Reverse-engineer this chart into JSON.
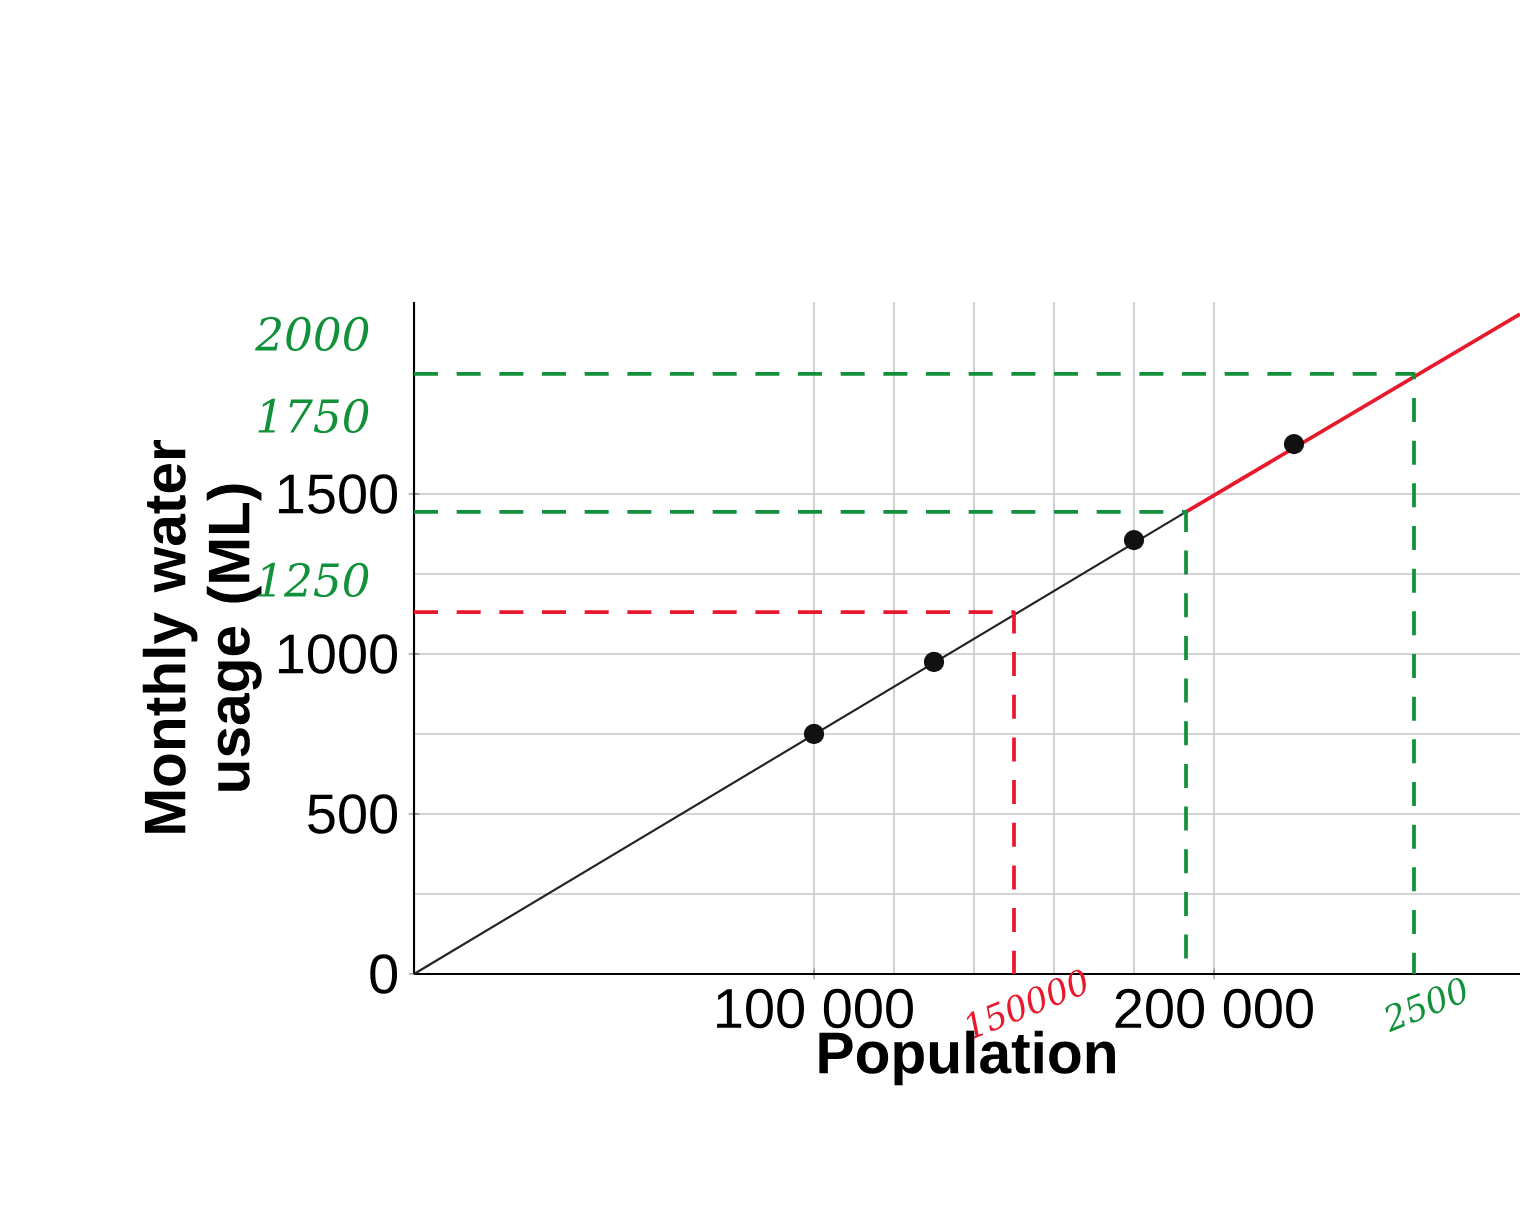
{
  "chart_data": {
    "type": "line",
    "xlabel": "Population",
    "ylabel": "Monthly water usage (ML)",
    "xlim": [
      0,
      276500
    ],
    "ylim": [
      0,
      2100
    ],
    "xticks": [
      {
        "value": 100000,
        "label": "100 000"
      },
      {
        "value": 200000,
        "label": "200 000"
      }
    ],
    "yticks": [
      0,
      500,
      1000,
      1500
    ],
    "grid": true,
    "series": [
      {
        "type": "scatter",
        "color": "#111111",
        "marker": "circle",
        "x": [
          100000,
          130000,
          180000,
          220000
        ],
        "values": [
          750,
          975,
          1356,
          1656
        ]
      },
      {
        "color": "#222222",
        "line_style": "solid",
        "x": [
          0,
          193000
        ],
        "values": [
          0,
          1444
        ]
      },
      {
        "color": "#e8192c",
        "line_style": "solid",
        "x": [
          193000,
          276500
        ],
        "values": [
          1444,
          2062
        ]
      },
      {
        "color": "#e8192c",
        "line_style": "dashed",
        "x": [
          0,
          150000,
          150000
        ],
        "values": [
          1131,
          1131,
          0
        ]
      },
      {
        "color": "#11913a",
        "line_style": "dashed",
        "x": [
          0,
          193000,
          193000
        ],
        "values": [
          1444,
          1444,
          0
        ]
      },
      {
        "color": "#11913a",
        "line_style": "dashed",
        "x": [
          0,
          250000,
          250000
        ],
        "values": [
          1875,
          1875,
          0
        ]
      }
    ],
    "annotations": [
      "2000",
      "1750",
      "1250",
      {
        "text": "150000",
        "x": 150000,
        "y": 0
      },
      {
        "text": "2500",
        "x": 250000,
        "y": 0
      }
    ]
  }
}
